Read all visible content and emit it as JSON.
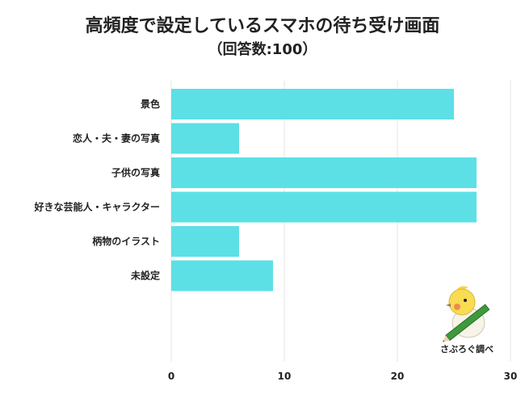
{
  "title": "高頻度で設定しているスマホの待ち受け画面",
  "subtitle": "（回答数:100）",
  "logo_text": "さぶろぐ調べ",
  "colors": {
    "bar": "#5ce0e6",
    "grid": "#e6e6e6"
  },
  "chart_data": {
    "type": "bar",
    "orientation": "horizontal",
    "categories": [
      "景色",
      "恋人・夫・妻の写真",
      "子供の写真",
      "好きな芸能人・キャラクター",
      "柄物のイラスト",
      "未設定"
    ],
    "values": [
      25,
      6,
      27,
      27,
      6,
      9
    ],
    "xlim": [
      0,
      30
    ],
    "xticks": [
      0,
      10,
      20,
      30
    ],
    "grid": true
  }
}
